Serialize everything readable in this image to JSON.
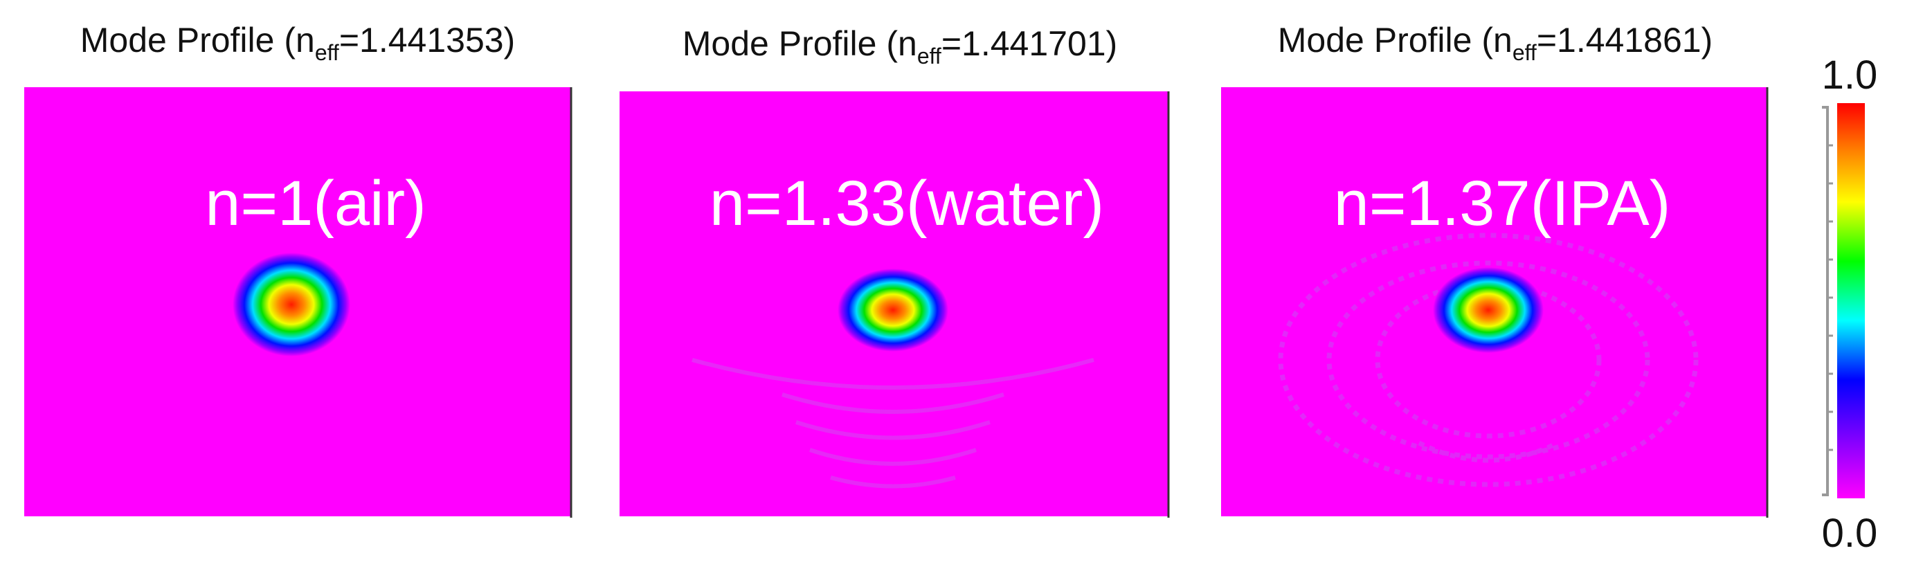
{
  "panels": [
    {
      "title": {
        "prefix": "Mode Profile (n",
        "subscript": "eff",
        "suffix": "=1.441353)"
      },
      "label": "n=1(air)"
    },
    {
      "title": {
        "prefix": "Mode Profile (n",
        "subscript": "eff",
        "suffix": "=1.441701)"
      },
      "label": "n=1.33(water)"
    },
    {
      "title": {
        "prefix": "Mode Profile (n",
        "subscript": "eff",
        "suffix": "=1.441861)"
      },
      "label": "n=1.37(IPA)"
    }
  ],
  "colorbar": {
    "max_label": "1.0",
    "min_label": "0.0"
  }
}
